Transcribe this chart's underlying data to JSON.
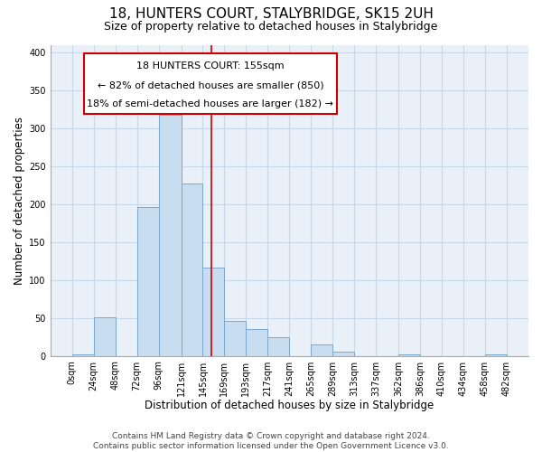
{
  "title": "18, HUNTERS COURT, STALYBRIDGE, SK15 2UH",
  "subtitle": "Size of property relative to detached houses in Stalybridge",
  "bar_color": "#c8ddef",
  "bar_edge_color": "#7aa8cc",
  "plot_bg_color": "#eaf0f7",
  "background_color": "#ffffff",
  "grid_color": "#c8d8e8",
  "bin_edges": [
    0,
    24,
    48,
    72,
    96,
    121,
    145,
    169,
    193,
    217,
    241,
    265,
    289,
    313,
    337,
    362,
    386,
    410,
    434,
    458,
    482
  ],
  "bar_heights": [
    2,
    51,
    0,
    196,
    318,
    228,
    116,
    46,
    35,
    25,
    0,
    15,
    6,
    0,
    0,
    2,
    0,
    0,
    0,
    2
  ],
  "xlabel": "Distribution of detached houses by size in Stalybridge",
  "ylabel": "Number of detached properties",
  "ylim": [
    0,
    410
  ],
  "yticks": [
    0,
    50,
    100,
    150,
    200,
    250,
    300,
    350,
    400
  ],
  "vline_x": 155,
  "vline_color": "#cc0000",
  "ann_line1": "18 HUNTERS COURT: 155sqm",
  "ann_line2": "← 82% of detached houses are smaller (850)",
  "ann_line3": "18% of semi-detached houses are larger (182) →",
  "footer_text": "Contains HM Land Registry data © Crown copyright and database right 2024.\nContains public sector information licensed under the Open Government Licence v3.0.",
  "tick_labels": [
    "0sqm",
    "24sqm",
    "48sqm",
    "72sqm",
    "96sqm",
    "121sqm",
    "145sqm",
    "169sqm",
    "193sqm",
    "217sqm",
    "241sqm",
    "265sqm",
    "289sqm",
    "313sqm",
    "337sqm",
    "362sqm",
    "386sqm",
    "410sqm",
    "434sqm",
    "458sqm",
    "482sqm"
  ],
  "title_fontsize": 11,
  "subtitle_fontsize": 9,
  "xlabel_fontsize": 8.5,
  "ylabel_fontsize": 8.5,
  "tick_fontsize": 7,
  "annotation_fontsize": 8,
  "footer_fontsize": 6.5
}
